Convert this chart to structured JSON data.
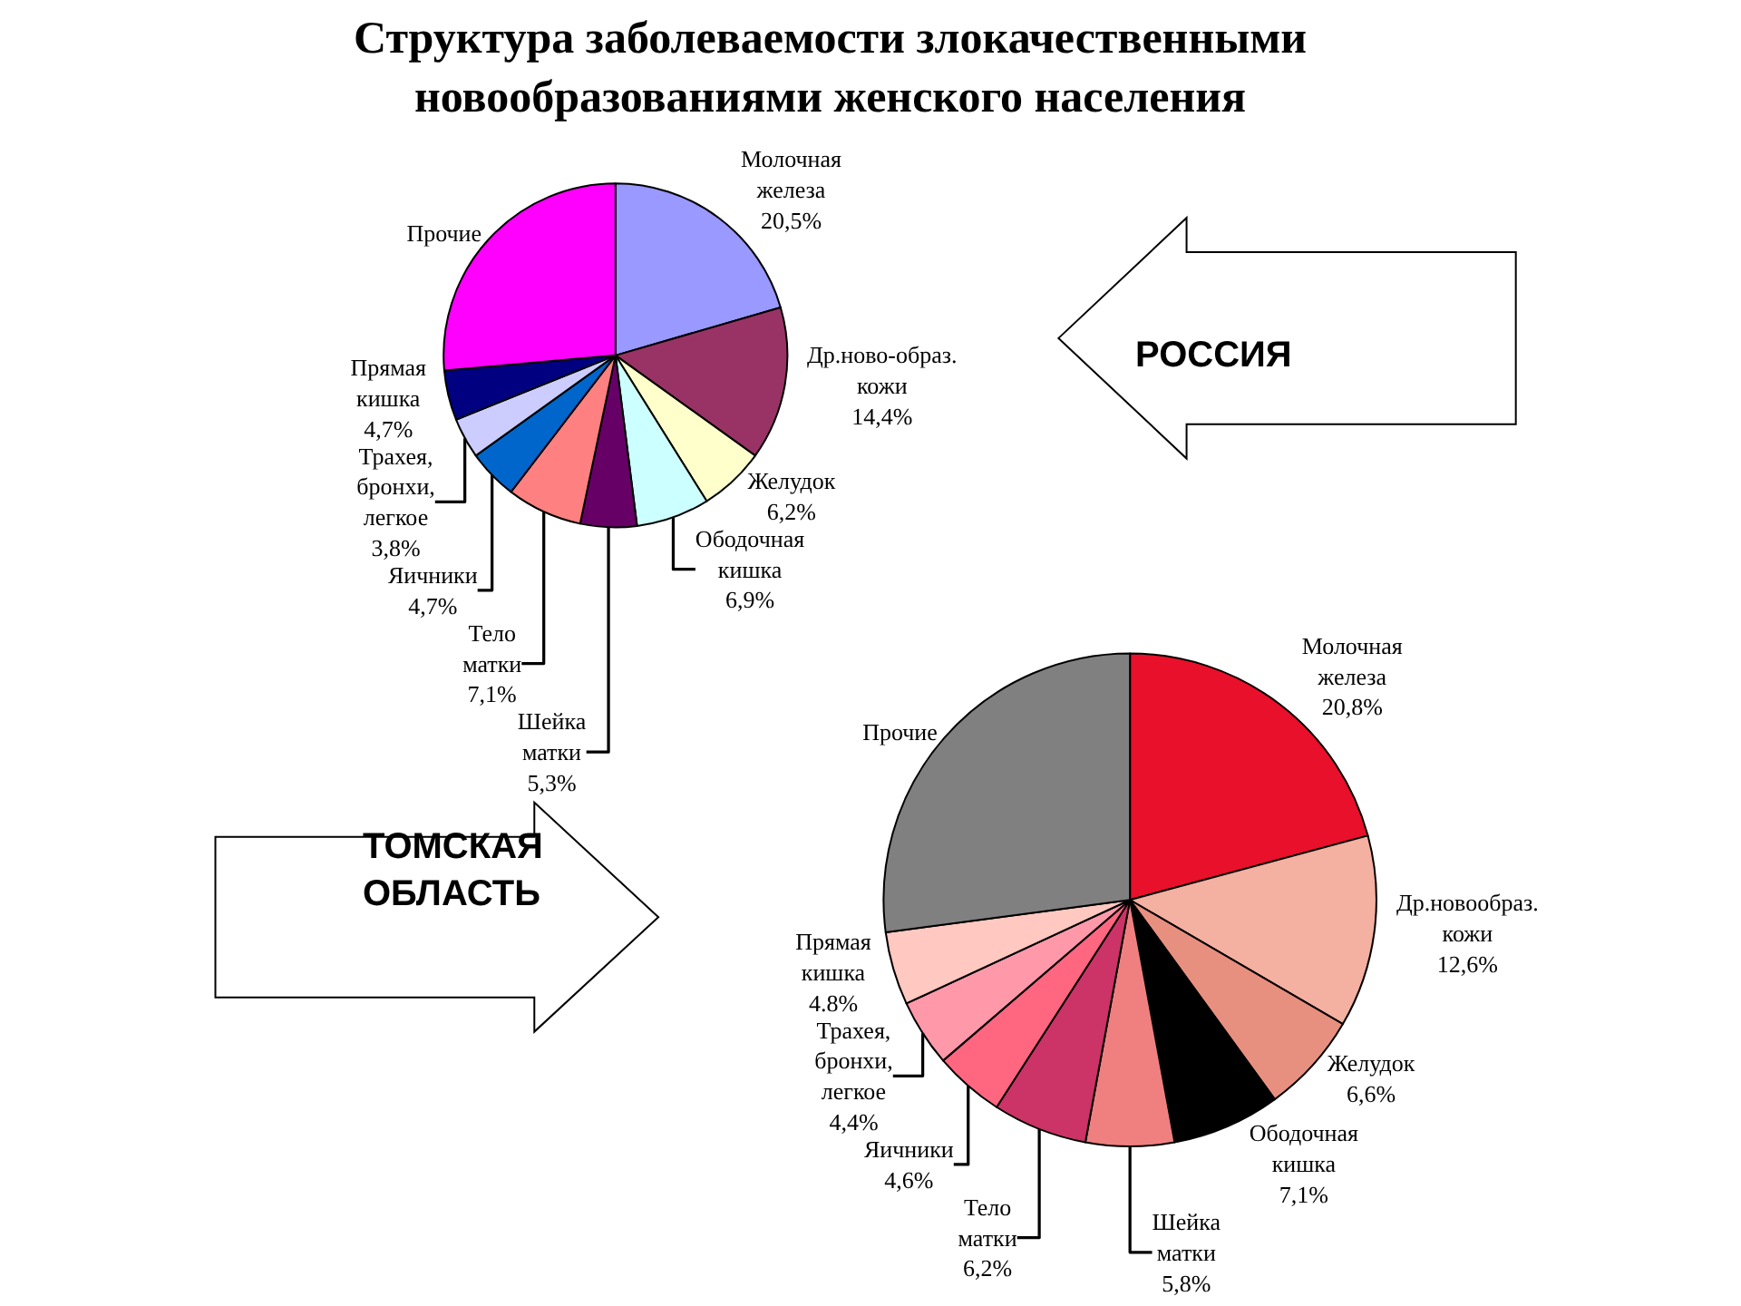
{
  "chart_data": [
    {
      "type": "pie",
      "title": "Структура заболеваемости злокачественными\nновообразованиями женского населения",
      "categories": [
        "Молочная железа",
        "Др.ново-образ. кожи",
        "Желудок",
        "Ободочная кишка",
        "Шейка матки",
        "Тело матки",
        "Яичники",
        "Трахея, бронхи, легкое",
        "Прямая кишка",
        "Прочие"
      ],
      "values": [
        20.5,
        14.4,
        6.2,
        6.9,
        5.3,
        7.1,
        4.7,
        3.8,
        4.7,
        26.4
      ],
      "colors": [
        "#9999ff",
        "#993366",
        "#ffffcc",
        "#ccffff",
        "#660066",
        "#ff8080",
        "#0066cc",
        "#ccccff",
        "#000080",
        "#ff00ff"
      ],
      "value_labels": [
        "20,5%",
        "14,4%",
        "6,2%",
        "6,9%",
        "5,3%",
        "7,1%",
        "4,7%",
        "3,8%",
        "4,7%",
        null
      ],
      "annotations": [
        "РОССИЯ"
      ]
    },
    {
      "type": "pie",
      "categories": [
        "Молочная железа",
        "Др.новообраз. кожи",
        "Желудок",
        "Ободочная кишка",
        "Шейка матки",
        "Тело матки",
        "Яичники",
        "Трахея, бронхи, легкое",
        "Прямая кишка",
        "Прочие"
      ],
      "values": [
        20.8,
        12.6,
        6.6,
        7.1,
        5.8,
        6.2,
        4.6,
        4.4,
        4.8,
        27.1
      ],
      "colors": [
        "#e8102a",
        "#f4b0a0",
        "#e89080",
        "#000000",
        "#f08080",
        "#cc3366",
        "#ff6680",
        "#ff99aa",
        "#ffc8c0",
        "#808080"
      ],
      "value_labels": [
        "20,8%",
        "12,6%",
        "6,6%",
        "7,1%",
        "5,8%",
        "6,2%",
        "4,6%",
        "4,4%",
        "4.8%",
        null
      ],
      "annotations": [
        "ТОМСКАЯ ОБЛАСТЬ"
      ]
    }
  ]
}
